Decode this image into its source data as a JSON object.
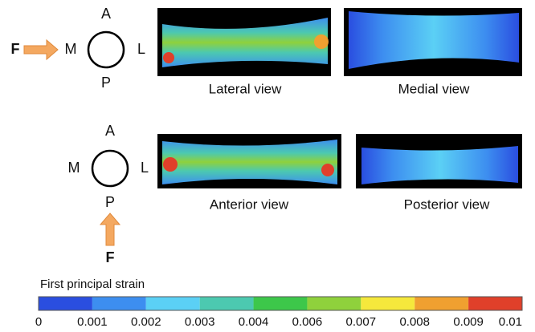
{
  "rows": [
    {
      "compass": {
        "top": "A",
        "bottom": "P",
        "left": "M",
        "right": "L"
      },
      "force": "F",
      "views": [
        "Lateral view",
        "Medial view"
      ]
    },
    {
      "compass": {
        "top": "A",
        "bottom": "P",
        "left": "M",
        "right": "L"
      },
      "force": "F",
      "views": [
        "Anterior view",
        "Posterior view"
      ]
    }
  ],
  "colorbar": {
    "title": "First principal strain",
    "ticks": [
      "0",
      "0.001",
      "0.002",
      "0.003",
      "0.004",
      "0.006",
      "0.007",
      "0.008",
      "0.009",
      "0.01"
    ],
    "colors": [
      "#2a4ee0",
      "#3d8ef0",
      "#5bd0f5",
      "#4cc9b0",
      "#3dc74a",
      "#8fd13c",
      "#f5e83c",
      "#f0a030",
      "#e0402a"
    ]
  }
}
